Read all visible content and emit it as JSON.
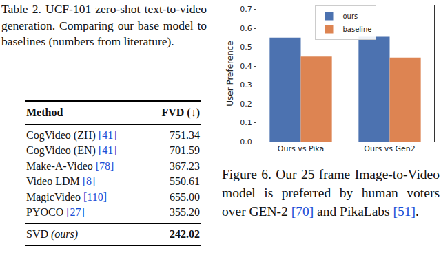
{
  "table_caption": [
    {
      "text": "Table 2.",
      "label": true
    },
    {
      "text": " UCF-101 zero-shot text-to-video generation. Comparing our base model to baselines (numbers from literature)."
    }
  ],
  "table": {
    "header": [
      "Method",
      "FVD (↓)"
    ],
    "rows": [
      {
        "method": "CogVideo (ZH)",
        "ref": "[41]",
        "fvd": "751.34"
      },
      {
        "method": "CogVideo (EN)",
        "ref": "[41]",
        "fvd": "701.59"
      },
      {
        "method": "Make-A-Video",
        "ref": "[78]",
        "fvd": "367.23"
      },
      {
        "method": "Video LDM",
        "ref": "[8]",
        "fvd": "550.61"
      },
      {
        "method": "MagicVideo",
        "ref": "[110]",
        "fvd": "655.00"
      },
      {
        "method": "PYOCO",
        "ref": "[27]",
        "fvd": "355.20"
      }
    ],
    "ours": {
      "method": "SVD",
      "note": "(ours)",
      "fvd": "242.02"
    }
  },
  "figure_caption": [
    {
      "text": "Figure 6.",
      "label": true
    },
    {
      "text": " Our 25 frame Image-to-Video model is preferred by human voters over GEN-2 "
    },
    {
      "text": "[70]",
      "ref": true
    },
    {
      "text": " and PikaLabs "
    },
    {
      "text": "[51]",
      "ref": true
    },
    {
      "text": "."
    }
  ],
  "chart_data": {
    "type": "bar",
    "y_label": "User Preference",
    "categories": [
      "Ours vs Pika",
      "Ours vs Gen2"
    ],
    "series": [
      {
        "name": "ours",
        "color": "#4c72b0",
        "values": [
          0.55,
          0.555
        ]
      },
      {
        "name": "baseline",
        "color": "#dd8452",
        "values": [
          0.45,
          0.445
        ]
      }
    ],
    "ylim": [
      0,
      0.72
    ],
    "yticks": [
      {
        "value": 0,
        "label": "0.0"
      },
      {
        "value": 0.1,
        "label": "0.1"
      },
      {
        "value": 0.2,
        "label": "0.2"
      },
      {
        "value": 0.3,
        "label": "0.3"
      },
      {
        "value": 0.4,
        "label": "0.4"
      },
      {
        "value": 0.5,
        "label": "0.5"
      },
      {
        "value": 0.6,
        "label": "0.6"
      },
      {
        "value": 0.7,
        "label": "0.7"
      }
    ],
    "grid": false,
    "legend": "top"
  }
}
